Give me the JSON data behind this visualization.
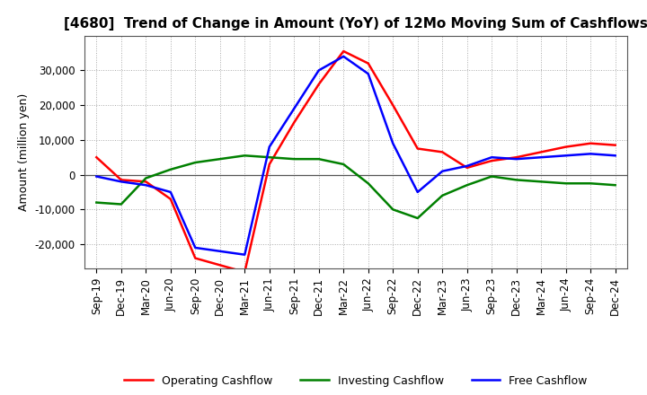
{
  "title": "[4680]  Trend of Change in Amount (YoY) of 12Mo Moving Sum of Cashflows",
  "ylabel": "Amount (million yen)",
  "x_labels": [
    "Sep-19",
    "Dec-19",
    "Mar-20",
    "Jun-20",
    "Sep-20",
    "Dec-20",
    "Mar-21",
    "Jun-21",
    "Sep-21",
    "Dec-21",
    "Mar-22",
    "Jun-22",
    "Sep-22",
    "Dec-22",
    "Mar-23",
    "Jun-23",
    "Sep-23",
    "Dec-23",
    "Mar-24",
    "Jun-24",
    "Sep-24",
    "Dec-24"
  ],
  "operating": [
    5000,
    -1500,
    -2000,
    -7000,
    -24000,
    -26000,
    -28000,
    3000,
    15000,
    26000,
    35500,
    32000,
    20000,
    7500,
    6500,
    2000,
    4000,
    5000,
    6500,
    8000,
    9000,
    8500
  ],
  "investing": [
    -8000,
    -8500,
    -1000,
    1500,
    3500,
    4500,
    5500,
    5000,
    4500,
    4500,
    3000,
    -2500,
    -10000,
    -12500,
    -6000,
    -3000,
    -500,
    -1500,
    -2000,
    -2500,
    -2500,
    -3000
  ],
  "free": [
    -500,
    -2000,
    -3000,
    -5000,
    -21000,
    -22000,
    -23000,
    8000,
    19000,
    30000,
    34000,
    29000,
    9000,
    -5000,
    1000,
    2500,
    5000,
    4500,
    5000,
    5500,
    6000,
    5500
  ],
  "operating_color": "#ff0000",
  "investing_color": "#008000",
  "free_color": "#0000ff",
  "ylim": [
    -27000,
    40000
  ],
  "yticks": [
    -20000,
    -10000,
    0,
    10000,
    20000,
    30000
  ],
  "background_color": "#ffffff",
  "grid_color": "#aaaaaa",
  "title_fontsize": 11,
  "tick_fontsize": 8.5
}
